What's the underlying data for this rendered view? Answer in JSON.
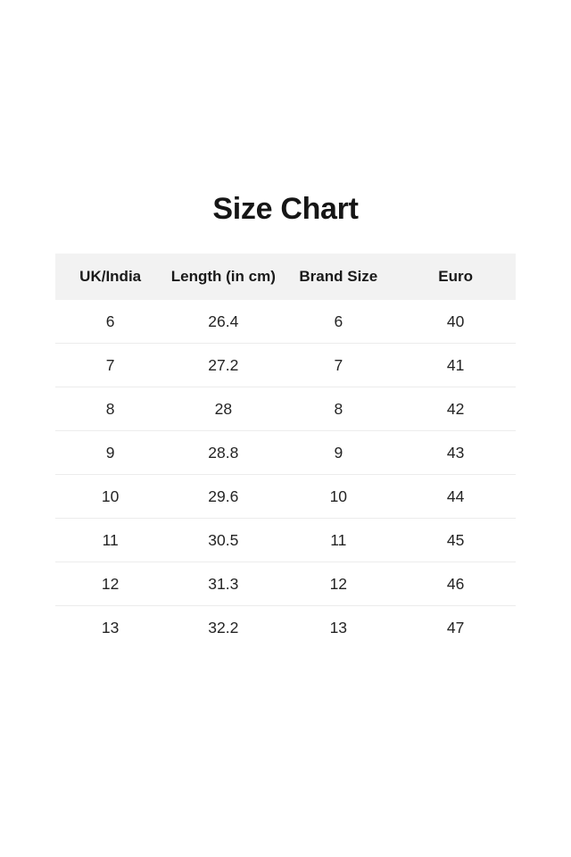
{
  "page": {
    "title": "Size Chart"
  },
  "colors": {
    "background": "#ffffff",
    "header_bg": "#f2f2f2",
    "divider": "#ececec",
    "title_text": "#161616",
    "cell_text": "#242424"
  },
  "size_chart": {
    "columns": [
      "UK/India",
      "Length (in cm)",
      "Brand Size",
      "Euro"
    ],
    "rows": [
      [
        "6",
        "26.4",
        "6",
        "40"
      ],
      [
        "7",
        "27.2",
        "7",
        "41"
      ],
      [
        "8",
        "28",
        "8",
        "42"
      ],
      [
        "9",
        "28.8",
        "9",
        "43"
      ],
      [
        "10",
        "29.6",
        "10",
        "44"
      ],
      [
        "11",
        "30.5",
        "11",
        "45"
      ],
      [
        "12",
        "31.3",
        "12",
        "46"
      ],
      [
        "13",
        "32.2",
        "13",
        "47"
      ]
    ]
  }
}
